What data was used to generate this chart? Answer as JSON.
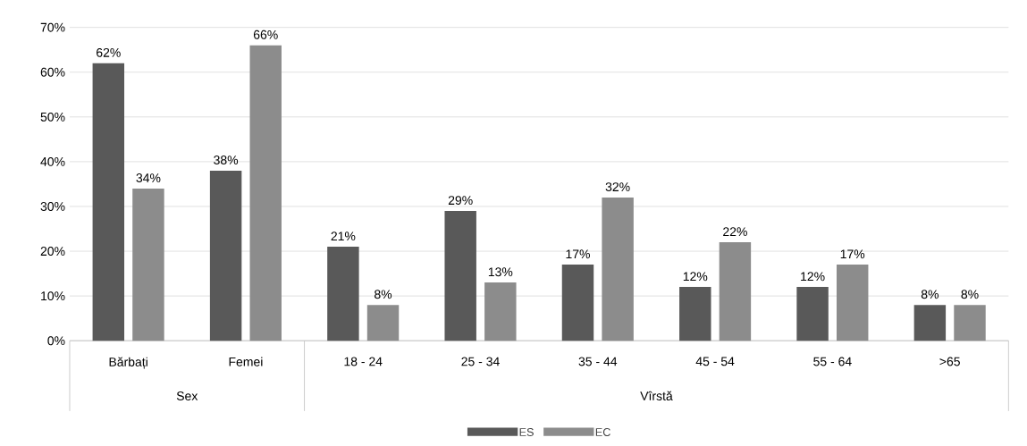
{
  "chart_data": {
    "type": "bar",
    "categories": [
      "Bărbați",
      "Femei",
      "18 - 24",
      "25 - 34",
      "35 - 44",
      "45 - 54",
      "55 - 64",
      ">65"
    ],
    "series": [
      {
        "name": "ES",
        "color": "#595959",
        "values": [
          62,
          38,
          21,
          29,
          17,
          12,
          12,
          8
        ],
        "value_labels": [
          "62%",
          "38%",
          "21%",
          "29%",
          "17%",
          "12%",
          "12%",
          "8%"
        ]
      },
      {
        "name": "EC",
        "color": "#8c8c8c",
        "values": [
          34,
          66,
          8,
          13,
          32,
          22,
          17,
          8
        ],
        "value_labels": [
          "34%",
          "66%",
          "8%",
          "13%",
          "32%",
          "22%",
          "17%",
          "8%"
        ]
      }
    ],
    "ylim": [
      0,
      70
    ],
    "yticks": [
      {
        "value": 0,
        "label": "0%"
      },
      {
        "value": 10,
        "label": "10%"
      },
      {
        "value": 20,
        "label": "20%"
      },
      {
        "value": 30,
        "label": "30%"
      },
      {
        "value": 40,
        "label": "40%"
      },
      {
        "value": 50,
        "label": "50%"
      },
      {
        "value": 60,
        "label": "60%"
      },
      {
        "value": 70,
        "label": "70%"
      }
    ],
    "grid": "y",
    "legend": "bottom",
    "annotations": [
      "Sex",
      "Vîrstă"
    ]
  }
}
